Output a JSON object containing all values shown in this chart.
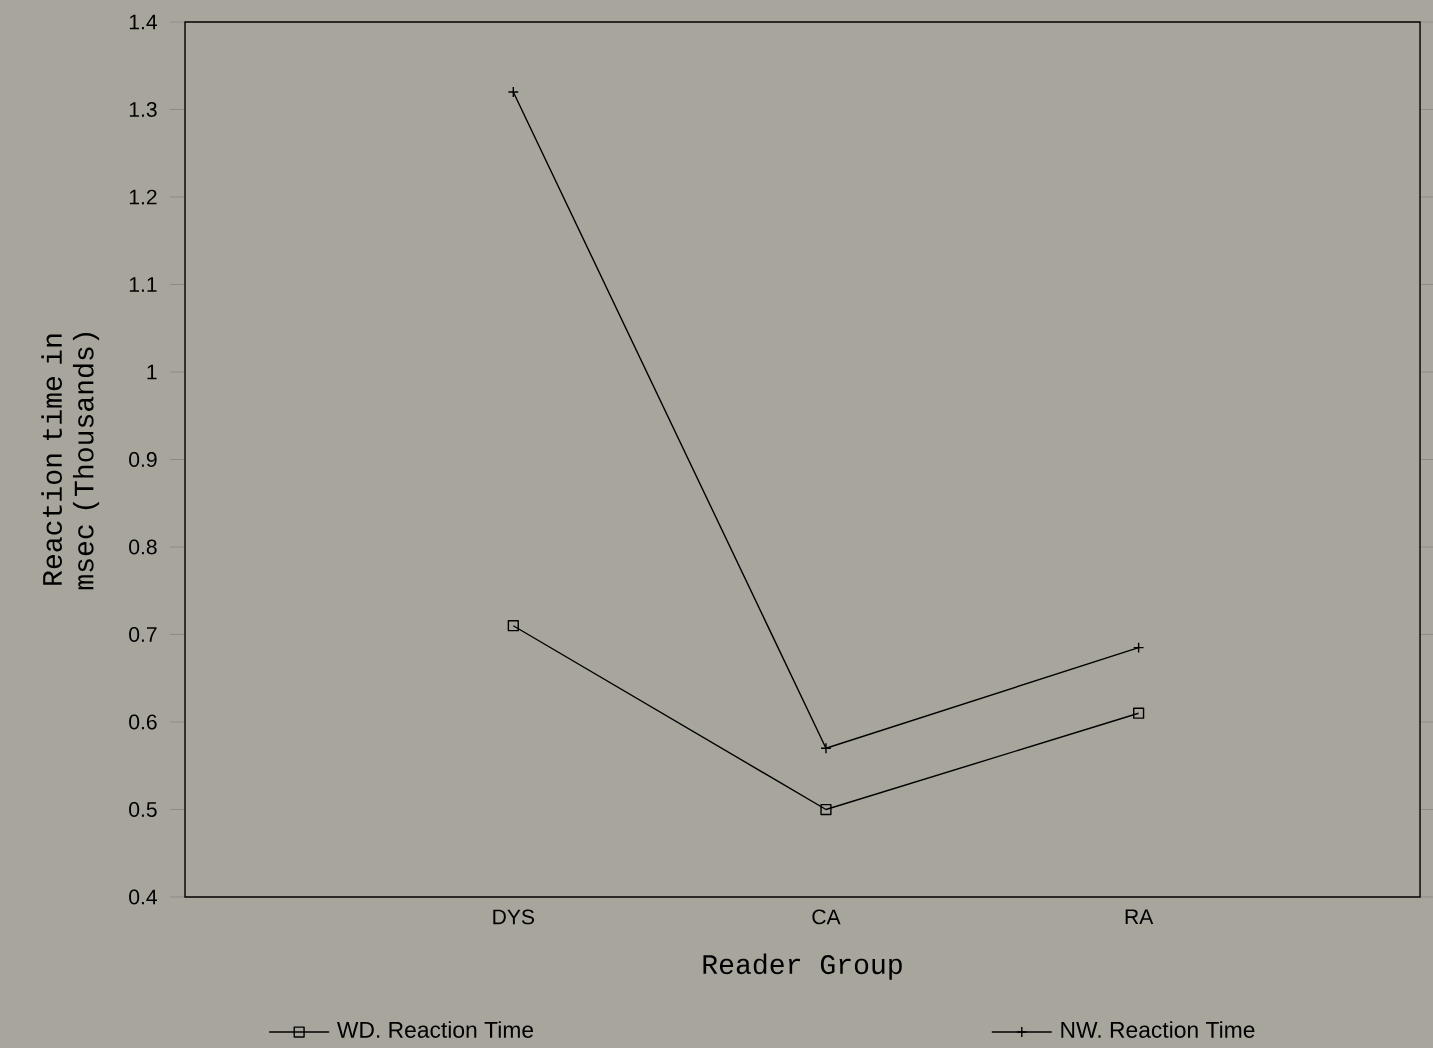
{
  "chart_data": {
    "type": "line",
    "xlabel": "Reader Group",
    "ylabel": "Reaction time in msec (Thousands)",
    "categories": [
      "DYS",
      "CA",
      "RA"
    ],
    "series": [
      {
        "name": "WD. Reaction Time",
        "color": "#000000",
        "marker": "square",
        "values": [
          0.71,
          0.5,
          0.61
        ]
      },
      {
        "name": "NW. Reaction Time",
        "color": "#000000",
        "marker": "cross",
        "values": [
          1.32,
          0.57,
          0.685
        ]
      }
    ],
    "ylim": [
      0.4,
      1.4
    ],
    "yticks": [
      0.4,
      0.5,
      0.6,
      0.7,
      0.8,
      0.9,
      1,
      1.1,
      1.2,
      1.3,
      1.4
    ],
    "legend": "bottom",
    "grid": false,
    "line_style": "solid"
  }
}
